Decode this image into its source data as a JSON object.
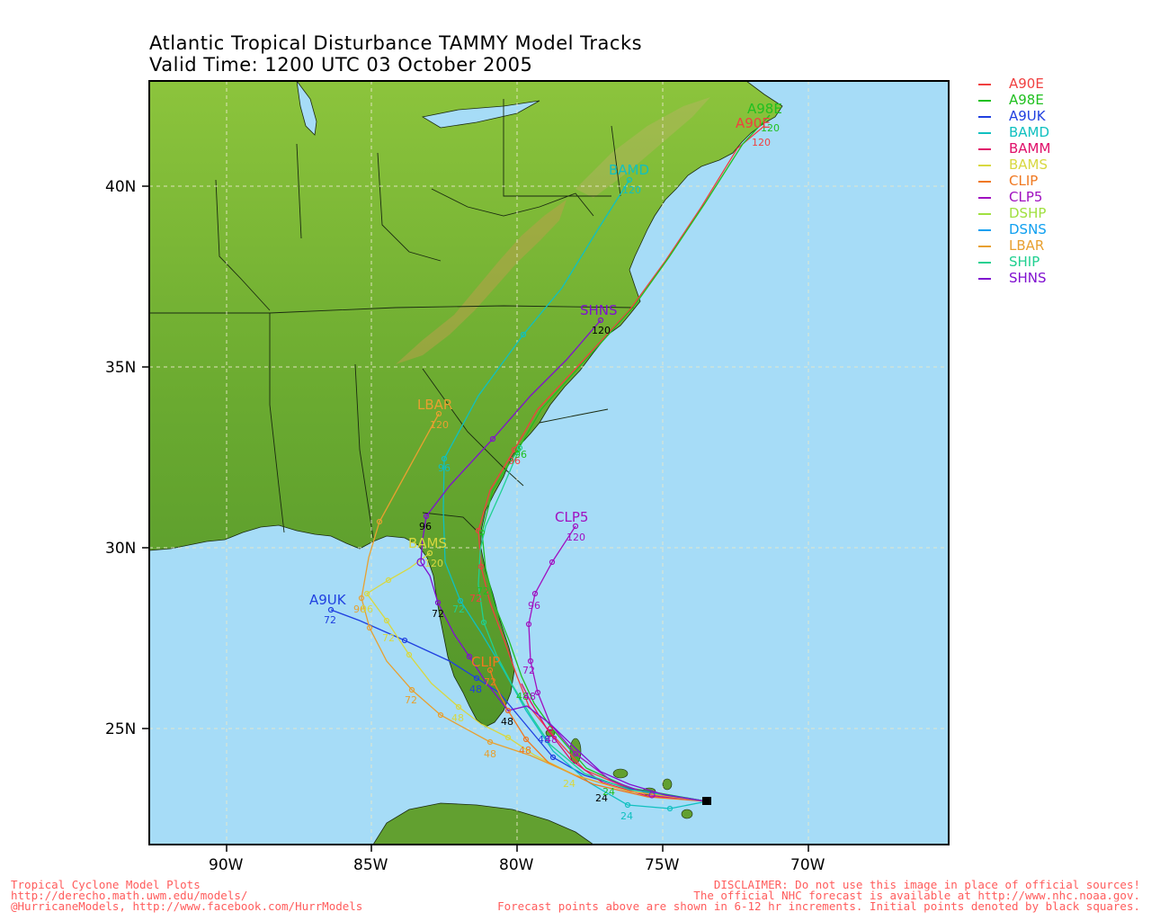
{
  "title": {
    "line1": "Atlantic Tropical Disturbance TAMMY Model Tracks",
    "line2": "Valid Time: 1200 UTC 03 October 2005"
  },
  "axes": {
    "lon_ticks": [
      "90W",
      "85W",
      "80W",
      "75W",
      "70W"
    ],
    "lat_ticks": [
      "40N",
      "35N",
      "30N",
      "25N"
    ]
  },
  "legend": [
    {
      "name": "A90E",
      "color": "#f04040"
    },
    {
      "name": "A98E",
      "color": "#20c020"
    },
    {
      "name": "A9UK",
      "color": "#2040e0"
    },
    {
      "name": "BAMD",
      "color": "#10c0c0"
    },
    {
      "name": "BAMM",
      "color": "#e0106a"
    },
    {
      "name": "BAMS",
      "color": "#d8d840"
    },
    {
      "name": "CLIP",
      "color": "#f07820"
    },
    {
      "name": "CLP5",
      "color": "#a010c0"
    },
    {
      "name": "DSHP",
      "color": "#a0e040"
    },
    {
      "name": "DSNS",
      "color": "#10a0f0"
    },
    {
      "name": "LBAR",
      "color": "#e8a030"
    },
    {
      "name": "SHIP",
      "color": "#20d090"
    },
    {
      "name": "SHNS",
      "color": "#8010d0"
    }
  ],
  "track_end_labels": [
    {
      "model": "A90E",
      "text": "A90E"
    },
    {
      "model": "A98E",
      "text": "A98E"
    },
    {
      "model": "BAMD",
      "text": "BAMD"
    },
    {
      "model": "SHNS",
      "text": "SHNS"
    },
    {
      "model": "LBAR",
      "text": "LBAR"
    },
    {
      "model": "BAMS",
      "text": "BAMS"
    },
    {
      "model": "CLP5",
      "text": "CLP5"
    },
    {
      "model": "A9UK",
      "text": "A9UK"
    },
    {
      "model": "CLIP",
      "text": "CLIP"
    }
  ],
  "footer": {
    "left": [
      "Tropical Cyclone Model Plots",
      "http://derecho.math.uwm.edu/models/",
      "@HurricaneModels, http://www.facebook.com/HurrModels"
    ],
    "right": [
      "DISCLAIMER: Do not use this image in place of official sources!",
      "The official NHC forecast is available at http://www.nhc.noaa.gov.",
      "Forecast points above are shown in 6-12 hr increments. Initial points denoted by black squares."
    ]
  }
}
